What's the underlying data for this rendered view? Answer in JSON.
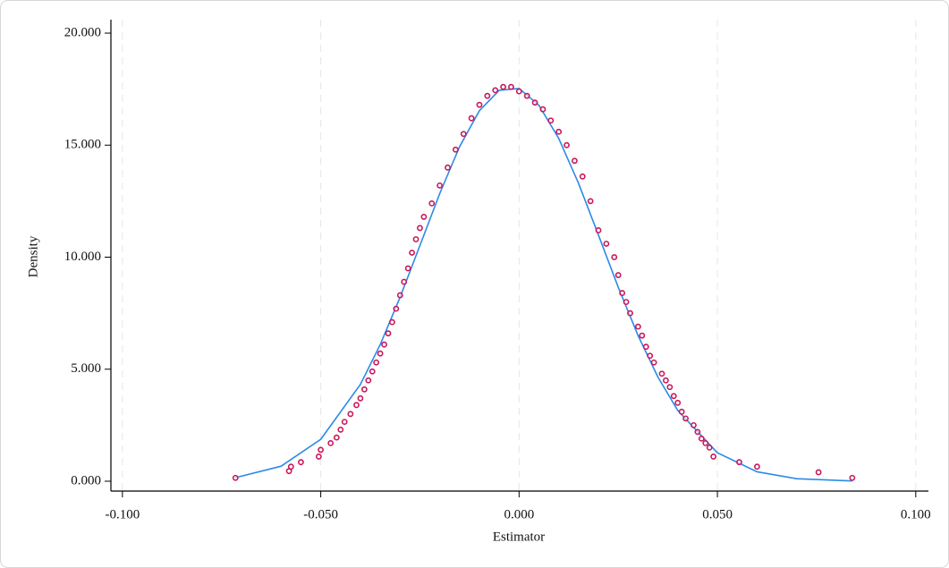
{
  "chart_data": {
    "type": "scatter",
    "x_label": "Estimator",
    "y_label": "Density",
    "xlim": [
      -0.1029,
      0.1032
    ],
    "ylim": [
      -0.44,
      20.6
    ],
    "xticks": [
      {
        "value": -0.1,
        "label": "-0.100"
      },
      {
        "value": -0.05,
        "label": "-0.050"
      },
      {
        "value": 0,
        "label": "0.000"
      },
      {
        "value": 0.05,
        "label": "0.050"
      },
      {
        "value": 0.1,
        "label": "0.100"
      }
    ],
    "yticks": [
      {
        "value": 0,
        "label": "0.000"
      },
      {
        "value": 5,
        "label": "5.000"
      },
      {
        "value": 10,
        "label": "10.000"
      },
      {
        "value": 15,
        "label": "15.000"
      },
      {
        "value": 20,
        "label": "20.000"
      }
    ],
    "grid": "x",
    "series": [
      {
        "type": "line",
        "color": "#2b8ae8",
        "x": [
          -0.0715,
          -0.06,
          -0.05,
          -0.04,
          -0.035,
          -0.03,
          -0.025,
          -0.02,
          -0.015,
          -0.01,
          -0.005,
          0,
          0.005,
          0.01,
          0.015,
          0.02,
          0.025,
          0.03,
          0.035,
          0.04,
          0.05,
          0.06,
          0.07,
          0.084
        ],
        "values": [
          0.16,
          0.67,
          1.87,
          4.32,
          6.1,
          8.21,
          10.52,
          12.84,
          14.93,
          16.54,
          17.45,
          17.53,
          16.78,
          15.3,
          13.29,
          10.99,
          8.66,
          6.5,
          4.65,
          3.16,
          1.27,
          0.42,
          0.11,
          0.01
        ]
      },
      {
        "type": "scatter",
        "color": "#c8185a",
        "x": [
          -0.0715,
          -0.058,
          -0.0575,
          -0.055,
          -0.0505,
          -0.05,
          -0.0475,
          -0.046,
          -0.045,
          -0.044,
          -0.0425,
          -0.041,
          -0.04,
          -0.039,
          -0.038,
          -0.037,
          -0.036,
          -0.035,
          -0.034,
          -0.033,
          -0.032,
          -0.031,
          -0.03,
          -0.029,
          -0.028,
          -0.027,
          -0.026,
          -0.025,
          -0.024,
          -0.022,
          -0.02,
          -0.018,
          -0.016,
          -0.014,
          -0.012,
          -0.01,
          -0.008,
          -0.006,
          -0.004,
          -0.002,
          0,
          0.002,
          0.004,
          0.006,
          0.008,
          0.01,
          0.012,
          0.014,
          0.016,
          0.018,
          0.02,
          0.022,
          0.024,
          0.025,
          0.026,
          0.027,
          0.028,
          0.03,
          0.031,
          0.032,
          0.033,
          0.034,
          0.036,
          0.037,
          0.038,
          0.039,
          0.04,
          0.041,
          0.042,
          0.044,
          0.045,
          0.046,
          0.047,
          0.048,
          0.049,
          0.0555,
          0.06,
          0.0755,
          0.084
        ],
        "values": [
          0.15,
          0.45,
          0.65,
          0.85,
          1.1,
          1.4,
          1.7,
          1.95,
          2.3,
          2.65,
          3.0,
          3.4,
          3.7,
          4.1,
          4.5,
          4.9,
          5.3,
          5.7,
          6.1,
          6.6,
          7.1,
          7.7,
          8.3,
          8.9,
          9.5,
          10.2,
          10.8,
          11.3,
          11.8,
          12.4,
          13.2,
          14.0,
          14.8,
          15.5,
          16.2,
          16.8,
          17.2,
          17.45,
          17.6,
          17.6,
          17.4,
          17.2,
          16.9,
          16.6,
          16.1,
          15.6,
          15.0,
          14.3,
          13.6,
          12.5,
          11.2,
          10.6,
          10.0,
          9.2,
          8.4,
          8.0,
          7.5,
          6.9,
          6.5,
          6.0,
          5.6,
          5.3,
          4.8,
          4.5,
          4.2,
          3.8,
          3.5,
          3.1,
          2.8,
          2.5,
          2.2,
          1.9,
          1.7,
          1.5,
          1.1,
          0.85,
          0.65,
          0.4,
          0.15
        ]
      }
    ]
  }
}
